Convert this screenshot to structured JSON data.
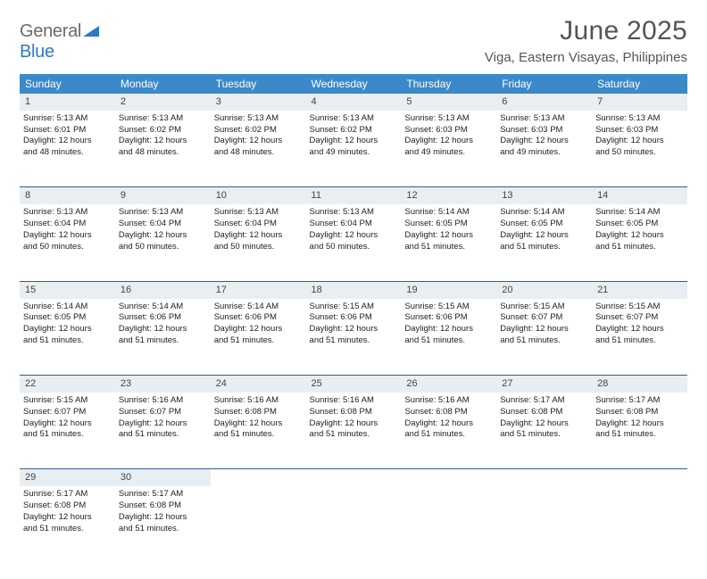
{
  "logo": {
    "general": "General",
    "blue": "Blue"
  },
  "title": "June 2025",
  "location": "Viga, Eastern Visayas, Philippines",
  "weekdays": [
    "Sunday",
    "Monday",
    "Tuesday",
    "Wednesday",
    "Thursday",
    "Friday",
    "Saturday"
  ],
  "colors": {
    "header_bg": "#3b89c9",
    "header_text": "#ffffff",
    "daynum_bg": "#e9eef2",
    "rule": "#2f5f8a",
    "logo_gray": "#6a6a6a",
    "logo_blue": "#2f78c4"
  },
  "weeks": [
    [
      {
        "n": "1",
        "sr": "Sunrise: 5:13 AM",
        "ss": "Sunset: 6:01 PM",
        "d1": "Daylight: 12 hours",
        "d2": "and 48 minutes."
      },
      {
        "n": "2",
        "sr": "Sunrise: 5:13 AM",
        "ss": "Sunset: 6:02 PM",
        "d1": "Daylight: 12 hours",
        "d2": "and 48 minutes."
      },
      {
        "n": "3",
        "sr": "Sunrise: 5:13 AM",
        "ss": "Sunset: 6:02 PM",
        "d1": "Daylight: 12 hours",
        "d2": "and 48 minutes."
      },
      {
        "n": "4",
        "sr": "Sunrise: 5:13 AM",
        "ss": "Sunset: 6:02 PM",
        "d1": "Daylight: 12 hours",
        "d2": "and 49 minutes."
      },
      {
        "n": "5",
        "sr": "Sunrise: 5:13 AM",
        "ss": "Sunset: 6:03 PM",
        "d1": "Daylight: 12 hours",
        "d2": "and 49 minutes."
      },
      {
        "n": "6",
        "sr": "Sunrise: 5:13 AM",
        "ss": "Sunset: 6:03 PM",
        "d1": "Daylight: 12 hours",
        "d2": "and 49 minutes."
      },
      {
        "n": "7",
        "sr": "Sunrise: 5:13 AM",
        "ss": "Sunset: 6:03 PM",
        "d1": "Daylight: 12 hours",
        "d2": "and 50 minutes."
      }
    ],
    [
      {
        "n": "8",
        "sr": "Sunrise: 5:13 AM",
        "ss": "Sunset: 6:04 PM",
        "d1": "Daylight: 12 hours",
        "d2": "and 50 minutes."
      },
      {
        "n": "9",
        "sr": "Sunrise: 5:13 AM",
        "ss": "Sunset: 6:04 PM",
        "d1": "Daylight: 12 hours",
        "d2": "and 50 minutes."
      },
      {
        "n": "10",
        "sr": "Sunrise: 5:13 AM",
        "ss": "Sunset: 6:04 PM",
        "d1": "Daylight: 12 hours",
        "d2": "and 50 minutes."
      },
      {
        "n": "11",
        "sr": "Sunrise: 5:13 AM",
        "ss": "Sunset: 6:04 PM",
        "d1": "Daylight: 12 hours",
        "d2": "and 50 minutes."
      },
      {
        "n": "12",
        "sr": "Sunrise: 5:14 AM",
        "ss": "Sunset: 6:05 PM",
        "d1": "Daylight: 12 hours",
        "d2": "and 51 minutes."
      },
      {
        "n": "13",
        "sr": "Sunrise: 5:14 AM",
        "ss": "Sunset: 6:05 PM",
        "d1": "Daylight: 12 hours",
        "d2": "and 51 minutes."
      },
      {
        "n": "14",
        "sr": "Sunrise: 5:14 AM",
        "ss": "Sunset: 6:05 PM",
        "d1": "Daylight: 12 hours",
        "d2": "and 51 minutes."
      }
    ],
    [
      {
        "n": "15",
        "sr": "Sunrise: 5:14 AM",
        "ss": "Sunset: 6:05 PM",
        "d1": "Daylight: 12 hours",
        "d2": "and 51 minutes."
      },
      {
        "n": "16",
        "sr": "Sunrise: 5:14 AM",
        "ss": "Sunset: 6:06 PM",
        "d1": "Daylight: 12 hours",
        "d2": "and 51 minutes."
      },
      {
        "n": "17",
        "sr": "Sunrise: 5:14 AM",
        "ss": "Sunset: 6:06 PM",
        "d1": "Daylight: 12 hours",
        "d2": "and 51 minutes."
      },
      {
        "n": "18",
        "sr": "Sunrise: 5:15 AM",
        "ss": "Sunset: 6:06 PM",
        "d1": "Daylight: 12 hours",
        "d2": "and 51 minutes."
      },
      {
        "n": "19",
        "sr": "Sunrise: 5:15 AM",
        "ss": "Sunset: 6:06 PM",
        "d1": "Daylight: 12 hours",
        "d2": "and 51 minutes."
      },
      {
        "n": "20",
        "sr": "Sunrise: 5:15 AM",
        "ss": "Sunset: 6:07 PM",
        "d1": "Daylight: 12 hours",
        "d2": "and 51 minutes."
      },
      {
        "n": "21",
        "sr": "Sunrise: 5:15 AM",
        "ss": "Sunset: 6:07 PM",
        "d1": "Daylight: 12 hours",
        "d2": "and 51 minutes."
      }
    ],
    [
      {
        "n": "22",
        "sr": "Sunrise: 5:15 AM",
        "ss": "Sunset: 6:07 PM",
        "d1": "Daylight: 12 hours",
        "d2": "and 51 minutes."
      },
      {
        "n": "23",
        "sr": "Sunrise: 5:16 AM",
        "ss": "Sunset: 6:07 PM",
        "d1": "Daylight: 12 hours",
        "d2": "and 51 minutes."
      },
      {
        "n": "24",
        "sr": "Sunrise: 5:16 AM",
        "ss": "Sunset: 6:08 PM",
        "d1": "Daylight: 12 hours",
        "d2": "and 51 minutes."
      },
      {
        "n": "25",
        "sr": "Sunrise: 5:16 AM",
        "ss": "Sunset: 6:08 PM",
        "d1": "Daylight: 12 hours",
        "d2": "and 51 minutes."
      },
      {
        "n": "26",
        "sr": "Sunrise: 5:16 AM",
        "ss": "Sunset: 6:08 PM",
        "d1": "Daylight: 12 hours",
        "d2": "and 51 minutes."
      },
      {
        "n": "27",
        "sr": "Sunrise: 5:17 AM",
        "ss": "Sunset: 6:08 PM",
        "d1": "Daylight: 12 hours",
        "d2": "and 51 minutes."
      },
      {
        "n": "28",
        "sr": "Sunrise: 5:17 AM",
        "ss": "Sunset: 6:08 PM",
        "d1": "Daylight: 12 hours",
        "d2": "and 51 minutes."
      }
    ],
    [
      {
        "n": "29",
        "sr": "Sunrise: 5:17 AM",
        "ss": "Sunset: 6:08 PM",
        "d1": "Daylight: 12 hours",
        "d2": "and 51 minutes."
      },
      {
        "n": "30",
        "sr": "Sunrise: 5:17 AM",
        "ss": "Sunset: 6:08 PM",
        "d1": "Daylight: 12 hours",
        "d2": "and 51 minutes."
      },
      null,
      null,
      null,
      null,
      null
    ]
  ]
}
